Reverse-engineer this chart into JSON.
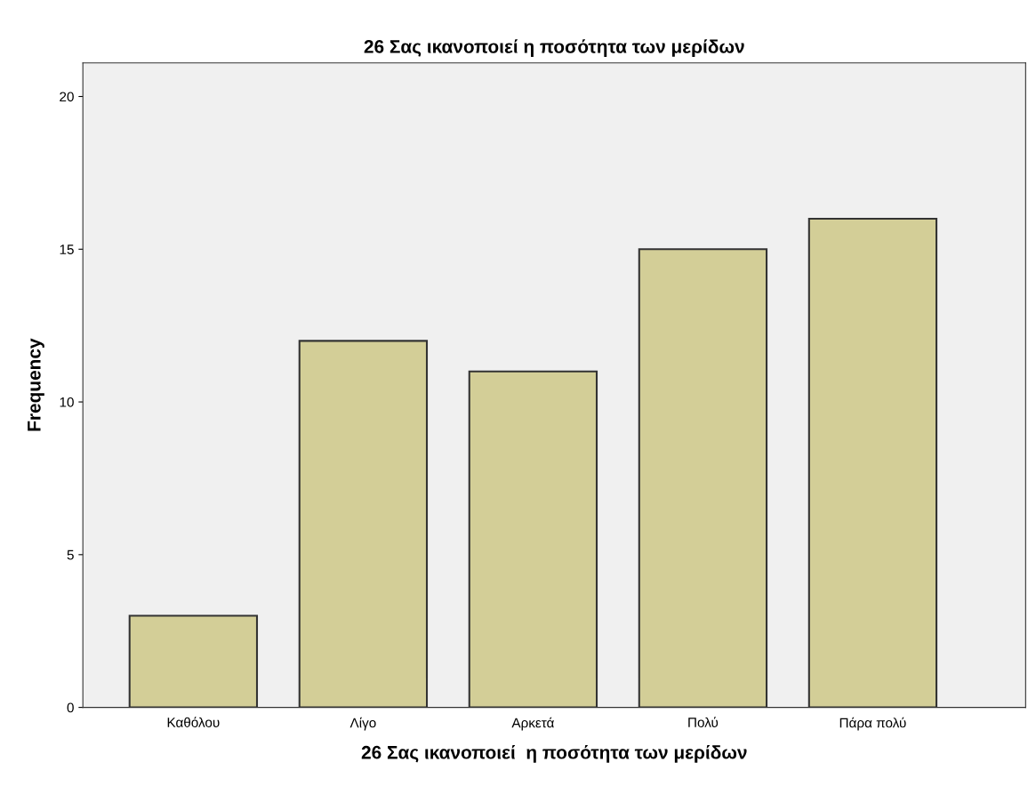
{
  "chart_data": {
    "type": "bar",
    "title": "26 Σας ικανοποιεί η ποσότητα των μερίδων",
    "xlabel": "26 Σας ικανοποιεί  η ποσότητα των μερίδων",
    "ylabel": "Frequency",
    "categories": [
      "Καθόλου",
      "Λίγο",
      "Αρκετά",
      "Πολύ",
      "Πάρα πολύ"
    ],
    "values": [
      3,
      12,
      11,
      15,
      16
    ],
    "color": "#d3ce97",
    "ylim": [
      0,
      21.1
    ],
    "yticks": [
      0,
      5,
      10,
      15,
      20
    ],
    "grid": false
  }
}
